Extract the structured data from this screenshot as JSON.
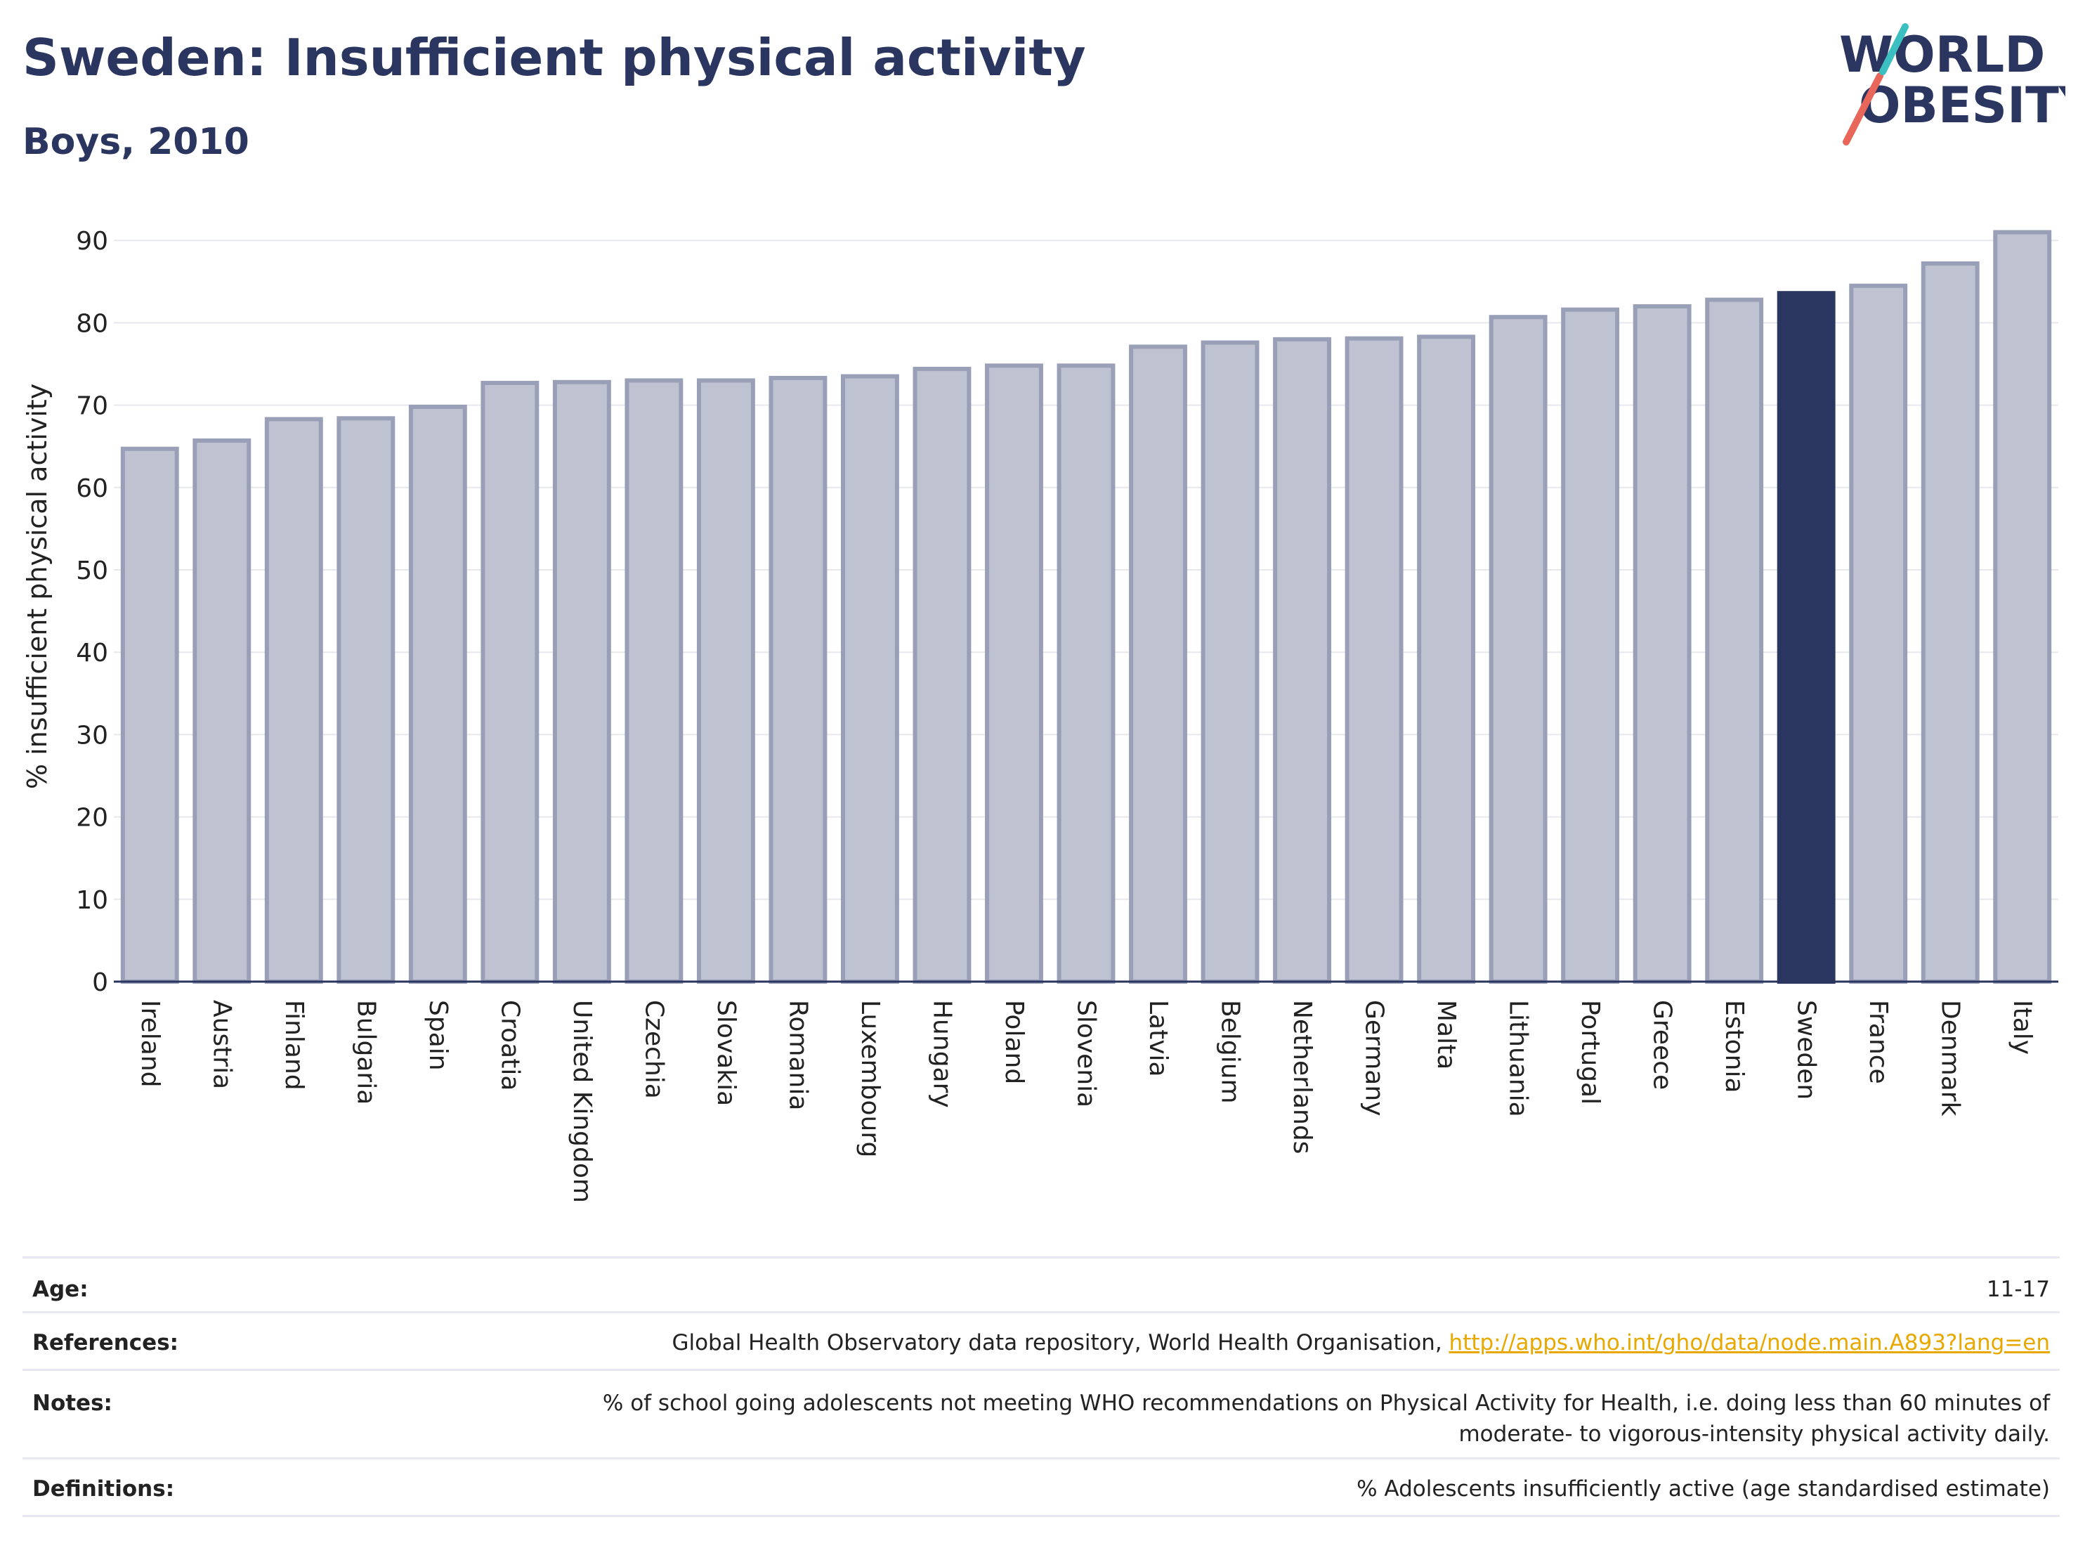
{
  "header": {
    "title": "Sweden: Insufficient physical activity",
    "subtitle": "Boys, 2010"
  },
  "logo": {
    "line1": "WORLD",
    "line2": "OBESITY",
    "colors": {
      "text": "#2a3560",
      "slash_red": "#e8665a",
      "slash_teal": "#3bbfc0"
    }
  },
  "colors": {
    "bar_default": "#bfc2d0",
    "bar_border": "#9a9fb8",
    "bar_highlight": "#2a3560",
    "grid": "#e6e8ee",
    "axis": "#2a3560"
  },
  "chart_data": {
    "type": "bar",
    "title": "Sweden: Insufficient physical activity",
    "subtitle": "Boys, 2010",
    "xlabel": "",
    "ylabel": "% insufficient physical activity",
    "ylim": [
      0,
      92
    ],
    "yticks": [
      0,
      10,
      20,
      30,
      40,
      50,
      60,
      70,
      80,
      90
    ],
    "grid": true,
    "highlight": "Sweden",
    "categories": [
      "Ireland",
      "Austria",
      "Finland",
      "Bulgaria",
      "Spain",
      "Croatia",
      "United Kingdom",
      "Czechia",
      "Slovakia",
      "Romania",
      "Luxembourg",
      "Hungary",
      "Poland",
      "Slovenia",
      "Latvia",
      "Belgium",
      "Netherlands",
      "Germany",
      "Malta",
      "Lithuania",
      "Portugal",
      "Greece",
      "Estonia",
      "Sweden",
      "France",
      "Denmark",
      "Italy"
    ],
    "values": [
      64.7,
      65.7,
      68.3,
      68.4,
      69.8,
      72.7,
      72.8,
      73.0,
      73.0,
      73.3,
      73.5,
      74.4,
      74.8,
      74.8,
      77.1,
      77.6,
      78.0,
      78.1,
      78.3,
      80.7,
      81.6,
      82.0,
      82.8,
      83.6,
      84.5,
      87.2,
      91.0
    ]
  },
  "info": {
    "age_label": "Age:",
    "age_value": "11-17",
    "references_label": "References:",
    "references_text": "Global Health Observatory data repository, World Health Organisation, ",
    "references_link": "http://apps.who.int/gho/data/node.main.A893?lang=en",
    "notes_label": "Notes:",
    "notes_line1": "% of school going adolescents not meeting WHO recommendations on Physical Activity for Health, i.e. doing less than 60 minutes of",
    "notes_line2": "moderate- to vigorous-intensity physical activity daily.",
    "definitions_label": "Definitions:",
    "definitions_value": "% Adolescents insufficiently active (age standardised estimate)"
  }
}
